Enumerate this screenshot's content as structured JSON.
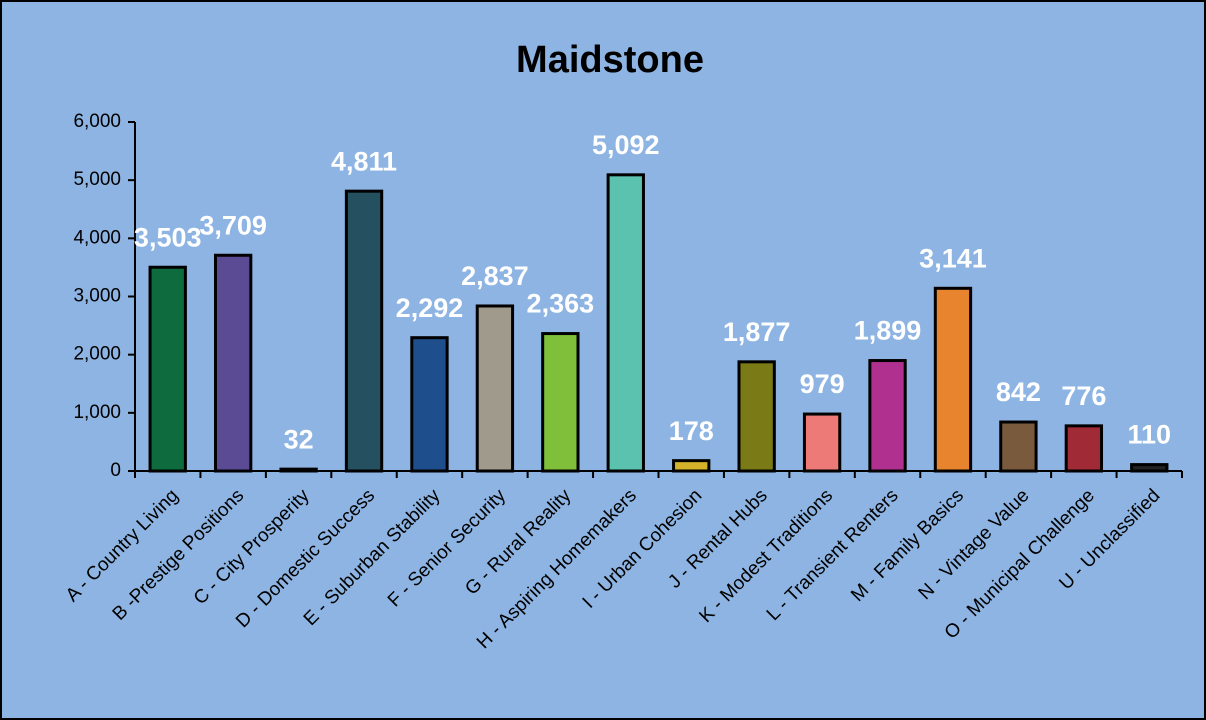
{
  "chart_data": {
    "type": "bar",
    "title": "Maidstone",
    "categories": [
      "A - Country Living",
      "B -Prestige Positions",
      "C - City Prosperity",
      "D - Domestic Success",
      "E - Suburban Stability",
      "F - Senior Security",
      "G - Rural Reality",
      "H - Aspiring Homemakers",
      "I - Urban Cohesion",
      "J - Rental Hubs",
      "K - Modest Traditions",
      "L - Transient Renters",
      "M - Family Basics",
      "N - Vintage Value",
      "O - Municipal Challenge",
      "U - Unclassified"
    ],
    "values": [
      3503,
      3709,
      32,
      4811,
      2292,
      2837,
      2363,
      5092,
      178,
      1877,
      979,
      1899,
      3141,
      842,
      776,
      110
    ],
    "value_labels": [
      "3,503",
      "3,709",
      "32",
      "4,811",
      "2,292",
      "2,837",
      "2,363",
      "5,092",
      "178",
      "1,877",
      "979",
      "1,899",
      "3,141",
      "842",
      "776",
      "110"
    ],
    "colors": [
      "#0e6b3e",
      "#5b4a94",
      "#3a3a3a",
      "#25505f",
      "#1f4e8c",
      "#a09a8c",
      "#7fbf3a",
      "#5cc2b0",
      "#d4b22a",
      "#7a7a16",
      "#ee7a78",
      "#b03090",
      "#e8842e",
      "#7a5a3c",
      "#a02a36",
      "#222222"
    ],
    "ylim": [
      0,
      6000
    ],
    "yticks": [
      0,
      {
        "value": 1000,
        "label": "1,000"
      },
      {
        "value": 2000,
        "label": "2,000"
      },
      {
        "value": 3000,
        "label": "3,000"
      },
      {
        "value": 4000,
        "label": "4,000"
      },
      {
        "value": 5000,
        "label": "5,000"
      },
      {
        "value": 6000,
        "label": "6,000"
      }
    ],
    "grid": false
  }
}
